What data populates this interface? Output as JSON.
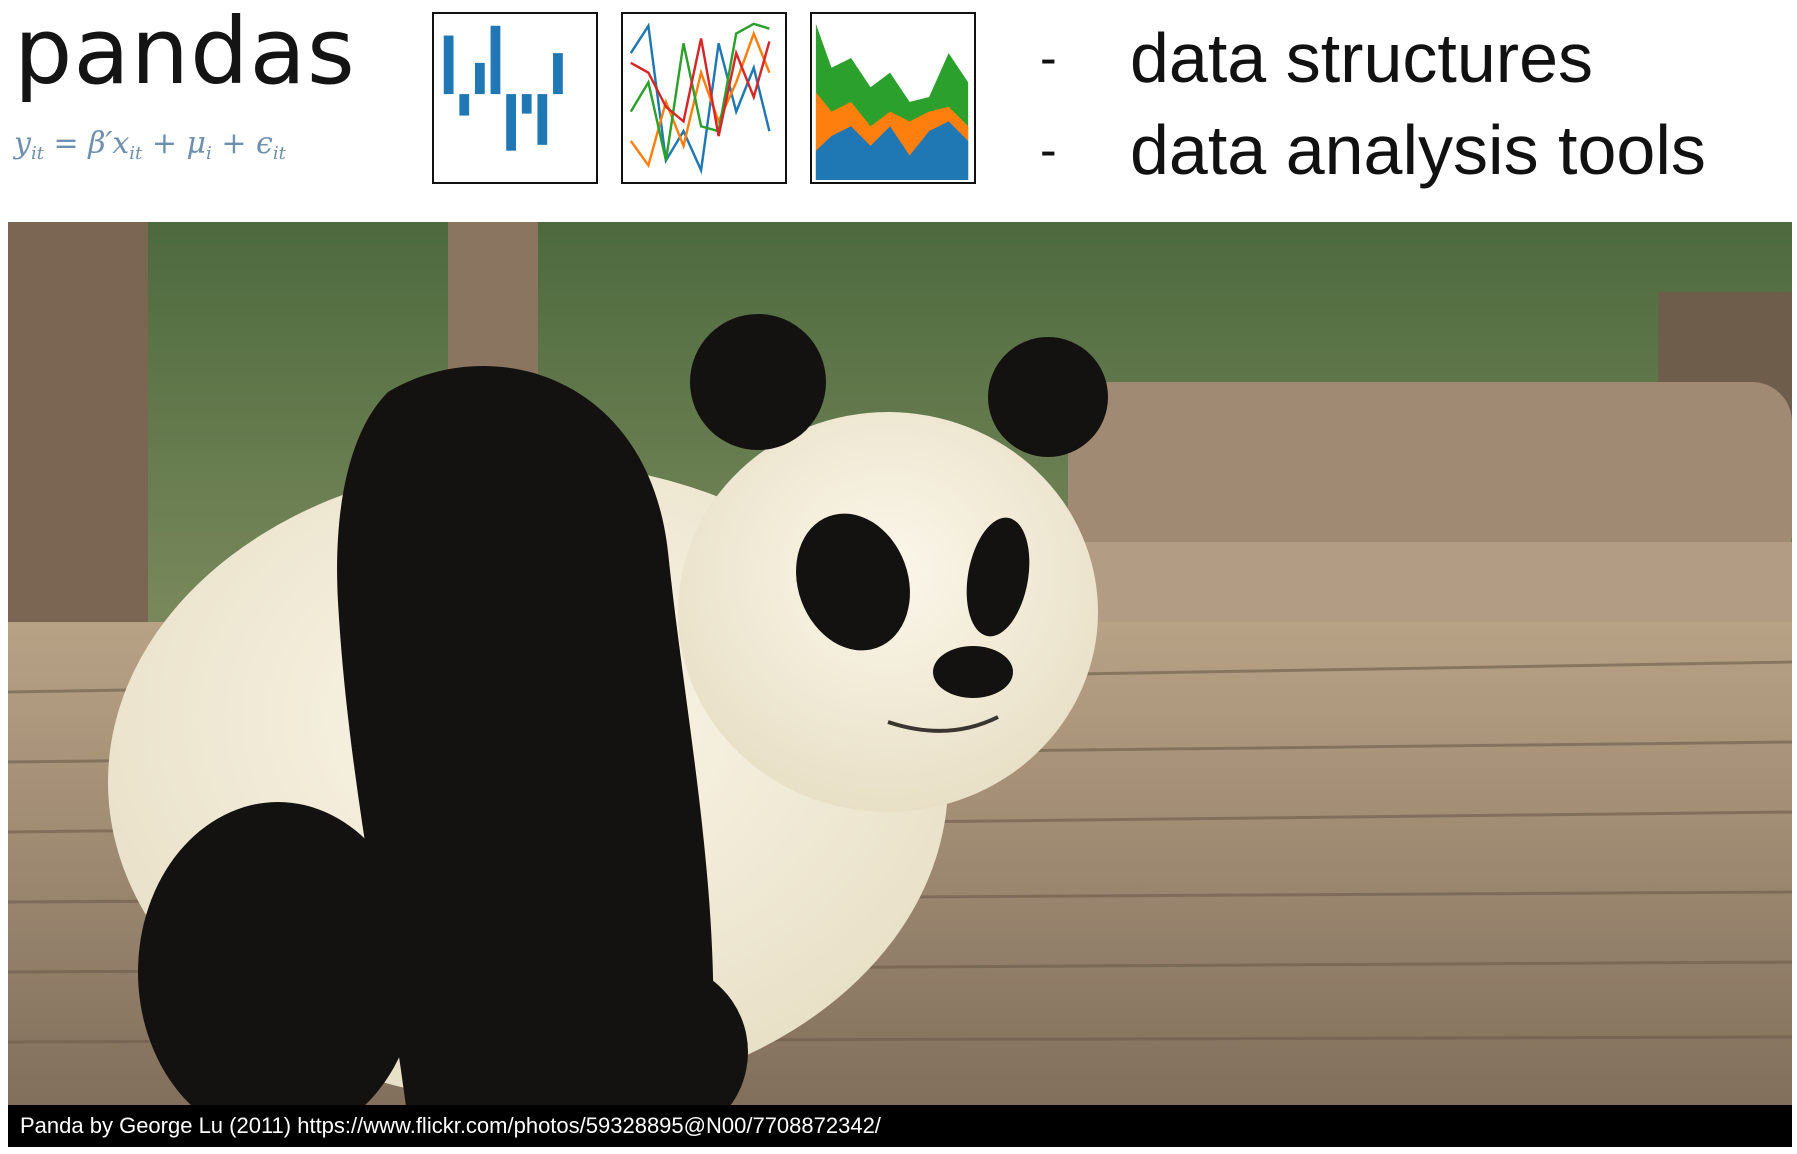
{
  "header": {
    "logo_text": "pandas",
    "formula": {
      "y": "y",
      "y_sub": "it",
      "eq": "=",
      "beta": "β′x",
      "x_sub": "it",
      "plus1": "+",
      "mu": "μ",
      "mu_sub": "i",
      "plus2": "+",
      "eps": "ϵ",
      "eps_sub": "it"
    },
    "bullets": [
      {
        "dash": "-",
        "text": "data structures"
      },
      {
        "dash": "-",
        "text": "data analysis tools"
      }
    ]
  },
  "thumbnail_colors": {
    "blue": "#1f77b4",
    "orange": "#ff7f0e",
    "green": "#2ca02c",
    "red": "#d62728"
  },
  "photo": {
    "subject": "giant panda cub sitting on wooden logs",
    "caption": "Panda by George Lu (2011) https://www.flickr.com/photos/59328895@N00/7708872342/"
  }
}
